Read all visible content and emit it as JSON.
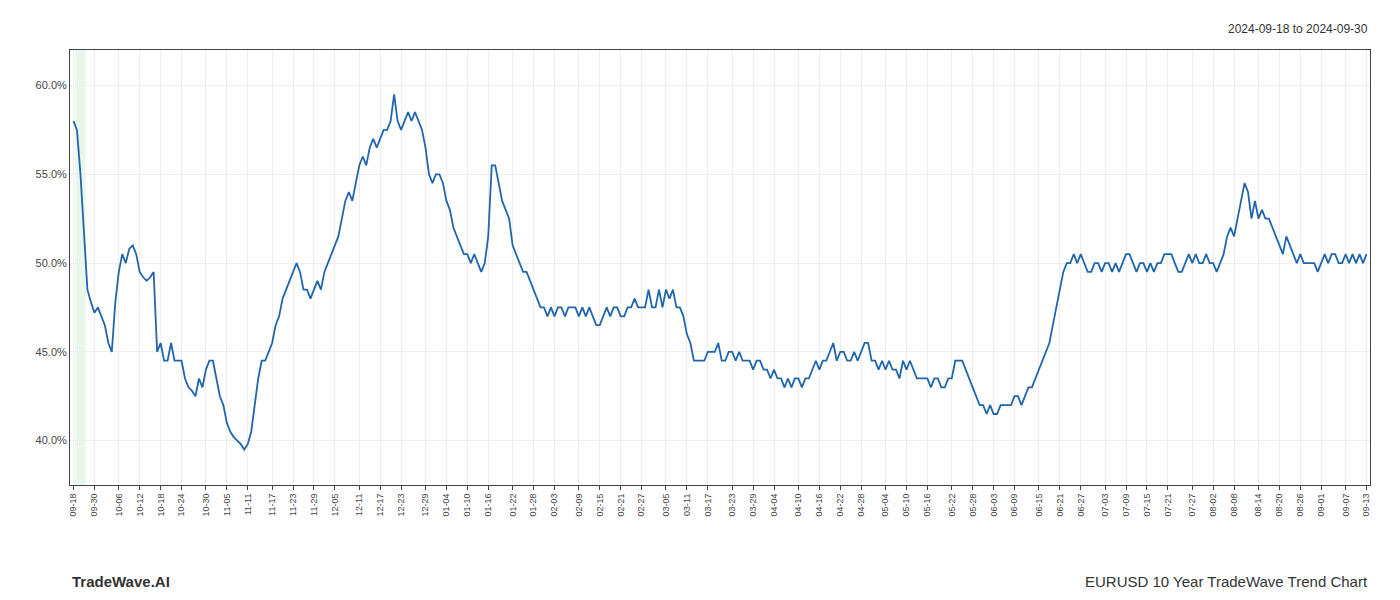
{
  "chart_data": {
    "type": "line",
    "annotations": [
      "2024-09-18 to 2024-09-30",
      "TradeWave.AI",
      "EURUSD 10 Year TradeWave Trend Chart"
    ],
    "color": "#2166ac",
    "grid": true,
    "highlight": {
      "from": 0.5,
      "to": 3.5,
      "color": "#d4edda"
    },
    "ylim": [
      37.5,
      62.0
    ],
    "yticks": [
      {
        "value": 40.0,
        "label": "40.0%"
      },
      {
        "value": 45.0,
        "label": "45.0%"
      },
      {
        "value": 50.0,
        "label": "50.0%"
      },
      {
        "value": 55.0,
        "label": "55.0%"
      },
      {
        "value": 60.0,
        "label": "60.0%"
      }
    ],
    "categories": [
      "09-18",
      null,
      null,
      null,
      null,
      null,
      "09-30",
      null,
      null,
      null,
      null,
      null,
      null,
      "10-06",
      null,
      null,
      null,
      null,
      null,
      "10-12",
      null,
      null,
      null,
      null,
      null,
      "10-18",
      null,
      null,
      null,
      null,
      null,
      "10-24",
      null,
      null,
      null,
      null,
      null,
      null,
      "10-30",
      null,
      null,
      null,
      null,
      null,
      "11-05",
      null,
      null,
      null,
      null,
      null,
      "11-11",
      null,
      null,
      null,
      null,
      null,
      null,
      "11-17",
      null,
      null,
      null,
      null,
      null,
      "11-23",
      null,
      null,
      null,
      null,
      null,
      "11-29",
      null,
      null,
      null,
      null,
      null,
      "12-05",
      null,
      null,
      null,
      null,
      null,
      null,
      "12-11",
      null,
      null,
      null,
      null,
      null,
      "12-17",
      null,
      null,
      null,
      null,
      null,
      "12-23",
      null,
      null,
      null,
      null,
      null,
      null,
      "12-29",
      null,
      null,
      null,
      null,
      null,
      "01-04",
      null,
      null,
      null,
      null,
      null,
      "01-10",
      null,
      null,
      null,
      null,
      null,
      "01-16",
      null,
      null,
      null,
      null,
      null,
      null,
      "01-22",
      null,
      null,
      null,
      null,
      null,
      "01-28",
      null,
      null,
      null,
      null,
      null,
      "02-03",
      null,
      null,
      null,
      null,
      null,
      null,
      "02-09",
      null,
      null,
      null,
      null,
      null,
      "02-15",
      null,
      null,
      null,
      null,
      null,
      "02-21",
      null,
      null,
      null,
      null,
      null,
      "02-27",
      null,
      null,
      null,
      null,
      null,
      null,
      "03-05",
      null,
      null,
      null,
      null,
      null,
      "03-11",
      null,
      null,
      null,
      null,
      null,
      "03-17",
      null,
      null,
      null,
      null,
      null,
      null,
      "03-23",
      null,
      null,
      null,
      null,
      null,
      "03-29",
      null,
      null,
      null,
      null,
      null,
      "04-04",
      null,
      null,
      null,
      null,
      null,
      null,
      "04-10",
      null,
      null,
      null,
      null,
      null,
      "04-16",
      null,
      null,
      null,
      null,
      null,
      "04-22",
      null,
      null,
      null,
      null,
      null,
      "04-28",
      null,
      null,
      null,
      null,
      null,
      null,
      "05-04",
      null,
      null,
      null,
      null,
      null,
      "05-10",
      null,
      null,
      null,
      null,
      null,
      "05-16",
      null,
      null,
      null,
      null,
      null,
      null,
      "05-22",
      null,
      null,
      null,
      null,
      null,
      "05-28",
      null,
      null,
      null,
      null,
      null,
      "06-03",
      null,
      null,
      null,
      null,
      null,
      "06-09",
      null,
      null,
      null,
      null,
      null,
      null,
      "06-15",
      null,
      null,
      null,
      null,
      null,
      "06-21",
      null,
      null,
      null,
      null,
      null,
      "06-27",
      null,
      null,
      null,
      null,
      null,
      null,
      "07-03",
      null,
      null,
      null,
      null,
      null,
      "07-09",
      null,
      null,
      null,
      null,
      null,
      "07-15",
      null,
      null,
      null,
      null,
      null,
      "07-21",
      null,
      null,
      null,
      null,
      null,
      null,
      "07-27",
      null,
      null,
      null,
      null,
      null,
      "08-02",
      null,
      null,
      null,
      null,
      null,
      "08-08",
      null,
      null,
      null,
      null,
      null,
      null,
      "08-14",
      null,
      null,
      null,
      null,
      null,
      "08-20",
      null,
      null,
      null,
      null,
      null,
      "08-26",
      null,
      null,
      null,
      null,
      null,
      "09-01",
      null,
      null,
      null,
      null,
      null,
      null,
      "09-07",
      null,
      null,
      null,
      null,
      null,
      "09-13"
    ],
    "values": [
      58.0,
      57.5,
      55.0,
      51.5,
      48.5,
      47.8,
      47.2,
      47.5,
      47.0,
      46.5,
      45.5,
      45.0,
      47.8,
      49.5,
      50.5,
      50.0,
      50.8,
      51.0,
      50.5,
      49.5,
      49.2,
      49.0,
      49.2,
      49.5,
      45.0,
      45.5,
      44.5,
      44.5,
      45.5,
      44.5,
      44.5,
      44.5,
      43.5,
      43.0,
      42.8,
      42.5,
      43.5,
      43.0,
      44.0,
      44.5,
      44.5,
      43.5,
      42.5,
      42.0,
      41.0,
      40.5,
      40.2,
      40.0,
      39.8,
      39.5,
      39.8,
      40.5,
      42.0,
      43.5,
      44.5,
      44.5,
      45.0,
      45.5,
      46.5,
      47.0,
      48.0,
      48.5,
      49.0,
      49.5,
      50.0,
      49.5,
      48.5,
      48.5,
      48.0,
      48.5,
      49.0,
      48.5,
      49.5,
      50.0,
      50.5,
      51.0,
      51.5,
      52.5,
      53.5,
      54.0,
      53.5,
      54.5,
      55.5,
      56.0,
      55.5,
      56.5,
      57.0,
      56.5,
      57.0,
      57.5,
      57.5,
      58.0,
      59.5,
      58.0,
      57.5,
      58.0,
      58.5,
      58.0,
      58.5,
      58.0,
      57.5,
      56.5,
      55.0,
      54.5,
      55.0,
      55.0,
      54.5,
      53.5,
      53.0,
      52.0,
      51.5,
      51.0,
      50.5,
      50.5,
      50.0,
      50.5,
      50.0,
      49.5,
      50.0,
      51.5,
      55.5,
      55.5,
      54.5,
      53.5,
      53.0,
      52.5,
      51.0,
      50.5,
      50.0,
      49.5,
      49.5,
      49.0,
      48.5,
      48.0,
      47.5,
      47.5,
      47.0,
      47.5,
      47.0,
      47.5,
      47.5,
      47.0,
      47.5,
      47.5,
      47.5,
      47.0,
      47.5,
      47.0,
      47.5,
      47.0,
      46.5,
      46.5,
      47.0,
      47.5,
      47.0,
      47.5,
      47.5,
      47.0,
      47.0,
      47.5,
      47.5,
      48.0,
      47.5,
      47.5,
      47.5,
      48.5,
      47.5,
      47.5,
      48.5,
      47.5,
      48.5,
      48.0,
      48.5,
      47.5,
      47.5,
      47.0,
      46.0,
      45.5,
      44.5,
      44.5,
      44.5,
      44.5,
      45.0,
      45.0,
      45.0,
      45.5,
      44.5,
      44.5,
      45.0,
      45.0,
      44.5,
      45.0,
      44.5,
      44.5,
      44.5,
      44.0,
      44.5,
      44.5,
      44.0,
      44.0,
      43.5,
      44.0,
      43.5,
      43.5,
      43.0,
      43.5,
      43.0,
      43.5,
      43.5,
      43.0,
      43.5,
      43.5,
      44.0,
      44.5,
      44.0,
      44.5,
      44.5,
      45.0,
      45.5,
      44.5,
      45.0,
      45.0,
      44.5,
      44.5,
      45.0,
      44.5,
      45.0,
      45.5,
      45.5,
      44.5,
      44.5,
      44.0,
      44.5,
      44.0,
      44.5,
      44.0,
      44.0,
      43.5,
      44.5,
      44.0,
      44.5,
      44.0,
      43.5,
      43.5,
      43.5,
      43.5,
      43.0,
      43.5,
      43.5,
      43.0,
      43.0,
      43.5,
      43.5,
      44.5,
      44.5,
      44.5,
      44.0,
      43.5,
      43.0,
      42.5,
      42.0,
      42.0,
      41.5,
      42.0,
      41.5,
      41.5,
      42.0,
      42.0,
      42.0,
      42.0,
      42.5,
      42.5,
      42.0,
      42.5,
      43.0,
      43.0,
      43.5,
      44.0,
      44.5,
      45.0,
      45.5,
      46.5,
      47.5,
      48.5,
      49.5,
      50.0,
      50.0,
      50.5,
      50.0,
      50.5,
      50.0,
      49.5,
      49.5,
      50.0,
      50.0,
      49.5,
      50.0,
      50.0,
      49.5,
      50.0,
      49.5,
      50.0,
      50.5,
      50.5,
      50.0,
      49.5,
      50.0,
      50.0,
      49.5,
      50.0,
      49.5,
      50.0,
      50.0,
      50.5,
      50.5,
      50.5,
      50.0,
      49.5,
      49.5,
      50.0,
      50.5,
      50.0,
      50.5,
      50.0,
      50.0,
      50.5,
      50.0,
      50.0,
      49.5,
      50.0,
      50.5,
      51.5,
      52.0,
      51.5,
      52.5,
      53.5,
      54.5,
      54.0,
      52.5,
      53.5,
      52.5,
      53.0,
      52.5,
      52.5,
      52.0,
      51.5,
      51.0,
      50.5,
      51.5,
      51.0,
      50.5,
      50.0,
      50.5,
      50.0,
      50.0,
      50.0,
      50.0,
      49.5,
      50.0,
      50.5,
      50.0,
      50.5,
      50.5,
      50.0,
      50.0,
      50.5,
      50.0,
      50.5,
      50.0,
      50.5,
      50.0,
      50.5
    ]
  }
}
